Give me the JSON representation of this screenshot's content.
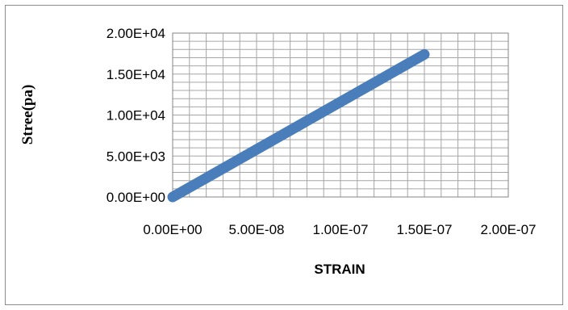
{
  "chart_data": {
    "type": "line",
    "title": "",
    "xlabel": "STRAIN",
    "ylabel": "Stree(pa)",
    "xlim": [
      0,
      2e-07
    ],
    "ylim": [
      0,
      20000
    ],
    "x_tick_labels": [
      "0.00E+00",
      "5.00E-08",
      "1.00E-07",
      "1.50E-07",
      "2.00E-07"
    ],
    "y_tick_labels": [
      "0.00E+00",
      "5.00E+03",
      "1.00E+04",
      "1.50E+04",
      "2.00E+04"
    ],
    "grid": true,
    "legend": "none",
    "series": [
      {
        "color": "#4a7ebb",
        "x": [
          0,
          1.5e-07
        ],
        "y": [
          0,
          17400
        ]
      }
    ]
  }
}
